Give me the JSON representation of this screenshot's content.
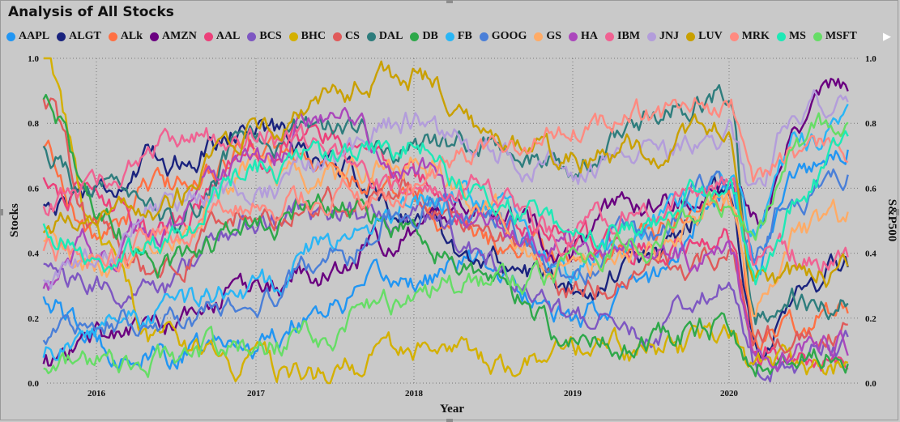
{
  "title": "Analysis of All Stocks",
  "legend_more_icon": "chevron-right-icon",
  "chart_data": {
    "type": "line",
    "title": "Analysis of All Stocks",
    "xlabel": "Year",
    "ylabel": "Stocks",
    "y2label": "S&P500",
    "x_ticks": [
      "2016",
      "2017",
      "2018",
      "2019",
      "2020"
    ],
    "x": [
      "2015-09",
      "2016-01",
      "2016-06",
      "2017-01",
      "2017-06",
      "2018-01",
      "2018-06",
      "2019-01",
      "2019-06",
      "2020-01",
      "2020-03",
      "2020-06",
      "2020-10"
    ],
    "ylim": [
      0,
      1
    ],
    "y2lim": [
      0,
      1
    ],
    "y_ticks": [
      "0.0",
      "0.2",
      "0.4",
      "0.6",
      "0.8",
      "1.0"
    ],
    "y2_ticks": [
      "0.0",
      "0.2",
      "0.4",
      "0.6",
      "0.8",
      "1.0"
    ],
    "grid": true,
    "legend_position": "top",
    "series": [
      {
        "name": "AAPL",
        "color": "#2196f3",
        "values": [
          0.27,
          0.12,
          0.08,
          0.13,
          0.24,
          0.32,
          0.37,
          0.18,
          0.3,
          0.58,
          0.4,
          0.66,
          0.75
        ]
      },
      {
        "name": "ALGT",
        "color": "#1a237e",
        "values": [
          0.55,
          0.6,
          0.68,
          0.8,
          0.7,
          0.52,
          0.38,
          0.3,
          0.36,
          0.6,
          0.12,
          0.28,
          0.36
        ]
      },
      {
        "name": "ALk",
        "color": "#ff7043",
        "values": [
          0.72,
          0.45,
          0.6,
          0.72,
          0.65,
          0.58,
          0.42,
          0.4,
          0.45,
          0.58,
          0.15,
          0.2,
          0.22
        ]
      },
      {
        "name": "AMZN",
        "color": "#6a0080",
        "values": [
          0.05,
          0.15,
          0.18,
          0.28,
          0.35,
          0.47,
          0.57,
          0.42,
          0.55,
          0.58,
          0.5,
          0.84,
          0.9
        ]
      },
      {
        "name": "AAL",
        "color": "#ec407a",
        "values": [
          0.62,
          0.55,
          0.45,
          0.72,
          0.78,
          0.6,
          0.52,
          0.44,
          0.42,
          0.45,
          0.1,
          0.08,
          0.07
        ]
      },
      {
        "name": "BCS",
        "color": "#7e57c2",
        "values": [
          0.35,
          0.28,
          0.3,
          0.5,
          0.52,
          0.5,
          0.38,
          0.2,
          0.15,
          0.32,
          0.05,
          0.08,
          0.1
        ]
      },
      {
        "name": "BHC",
        "color": "#d4b000",
        "values": [
          0.98,
          0.45,
          0.12,
          0.05,
          0.02,
          0.08,
          0.07,
          0.09,
          0.1,
          0.12,
          0.03,
          0.05,
          0.06
        ]
      },
      {
        "name": "CS",
        "color": "#e05a5a",
        "values": [
          0.85,
          0.48,
          0.35,
          0.55,
          0.55,
          0.62,
          0.45,
          0.3,
          0.32,
          0.4,
          0.12,
          0.15,
          0.16
        ]
      },
      {
        "name": "DAL",
        "color": "#2e7d7d",
        "values": [
          0.7,
          0.58,
          0.48,
          0.75,
          0.8,
          0.72,
          0.72,
          0.68,
          0.82,
          0.9,
          0.2,
          0.25,
          0.24
        ]
      },
      {
        "name": "DB",
        "color": "#2ea84a",
        "values": [
          0.9,
          0.55,
          0.35,
          0.48,
          0.55,
          0.48,
          0.32,
          0.14,
          0.12,
          0.18,
          0.06,
          0.08,
          0.1
        ]
      },
      {
        "name": "FB",
        "color": "#29b6f6",
        "values": [
          0.1,
          0.17,
          0.22,
          0.28,
          0.42,
          0.55,
          0.58,
          0.35,
          0.5,
          0.62,
          0.45,
          0.72,
          0.82
        ]
      },
      {
        "name": "GOOG",
        "color": "#4a7fd8",
        "values": [
          0.15,
          0.2,
          0.18,
          0.28,
          0.38,
          0.55,
          0.5,
          0.35,
          0.45,
          0.62,
          0.42,
          0.6,
          0.65
        ]
      },
      {
        "name": "GS",
        "color": "#ffab66",
        "values": [
          0.45,
          0.35,
          0.4,
          0.68,
          0.62,
          0.7,
          0.55,
          0.35,
          0.42,
          0.55,
          0.25,
          0.45,
          0.5
        ]
      },
      {
        "name": "HA",
        "color": "#ab47bc",
        "values": [
          0.3,
          0.42,
          0.48,
          0.68,
          0.82,
          0.7,
          0.5,
          0.42,
          0.38,
          0.4,
          0.05,
          0.1,
          0.12
        ]
      },
      {
        "name": "IBM",
        "color": "#f06292",
        "values": [
          0.55,
          0.62,
          0.72,
          0.78,
          0.72,
          0.62,
          0.6,
          0.45,
          0.55,
          0.6,
          0.35,
          0.4,
          0.38
        ]
      },
      {
        "name": "JNJ",
        "color": "#b39ddb",
        "values": [
          0.32,
          0.38,
          0.55,
          0.58,
          0.68,
          0.8,
          0.72,
          0.65,
          0.68,
          0.78,
          0.55,
          0.85,
          0.88
        ]
      },
      {
        "name": "LUV",
        "color": "#c9a000",
        "values": [
          0.46,
          0.52,
          0.55,
          0.78,
          0.9,
          0.95,
          0.78,
          0.68,
          0.72,
          0.78,
          0.3,
          0.32,
          0.34
        ]
      },
      {
        "name": "MRK",
        "color": "#ff8a80",
        "values": [
          0.4,
          0.35,
          0.42,
          0.55,
          0.58,
          0.6,
          0.7,
          0.78,
          0.82,
          0.85,
          0.6,
          0.72,
          0.7
        ]
      },
      {
        "name": "MS",
        "color": "#1de9b6",
        "values": [
          0.48,
          0.4,
          0.42,
          0.66,
          0.7,
          0.75,
          0.6,
          0.45,
          0.5,
          0.62,
          0.3,
          0.55,
          0.7
        ]
      },
      {
        "name": "MSFT",
        "color": "#66dd66",
        "values": [
          0.03,
          0.05,
          0.07,
          0.12,
          0.16,
          0.27,
          0.32,
          0.35,
          0.43,
          0.55,
          0.48,
          0.72,
          0.82
        ]
      }
    ]
  }
}
